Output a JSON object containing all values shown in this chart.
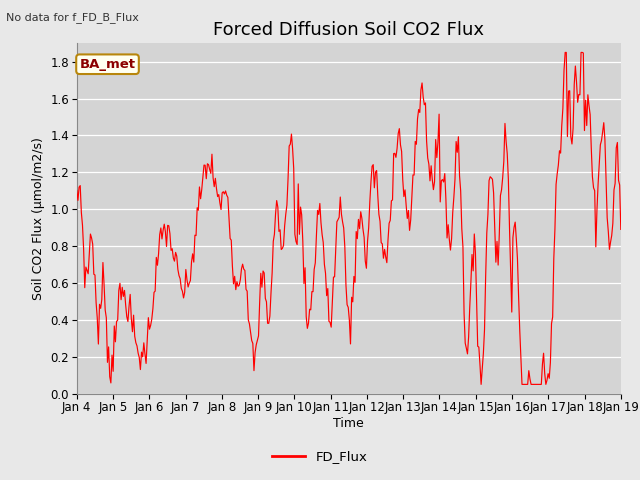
{
  "title": "Forced Diffusion Soil CO2 Flux",
  "no_data_label": "No data for f_FD_B_Flux",
  "ba_met_label": "BA_met",
  "ylabel": "Soil CO2 Flux (μmol/m2/s)",
  "xlabel": "Time",
  "legend_label": "FD_Flux",
  "line_color": "red",
  "fig_bg_color": "#e8e8e8",
  "plot_bg_color": "#d4d4d4",
  "ylim": [
    0.0,
    1.9
  ],
  "yticks": [
    0.0,
    0.2,
    0.4,
    0.6,
    0.8,
    1.0,
    1.2,
    1.4,
    1.6,
    1.8
  ],
  "start_day": 4,
  "end_day": 19,
  "n_points": 480,
  "title_fontsize": 13,
  "label_fontsize": 9,
  "tick_fontsize": 8.5
}
